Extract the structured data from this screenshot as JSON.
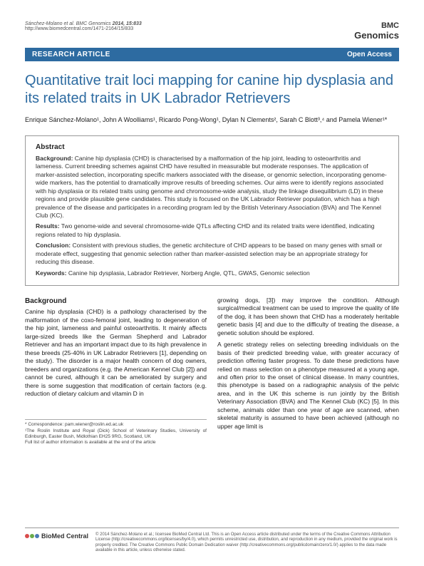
{
  "header": {
    "citation_authors": "Sánchez-Molano et al. BMC Genomics",
    "citation_year_vol": "2014, 15:833",
    "citation_url": "http://www.biomedcentral.com/1471-2164/15/833",
    "logo_prefix": "BMC",
    "logo_name": "Genomics"
  },
  "banner": {
    "left": "RESEARCH ARTICLE",
    "right": "Open Access"
  },
  "title": "Quantitative trait loci mapping for canine hip dysplasia and its related traits in UK Labrador Retrievers",
  "authors_html": "Enrique Sánchez-Molano¹, John A Woolliams¹, Ricardo Pong-Wong¹, Dylan N Clements², Sarah C Blott³,⁴ and Pamela Wiener¹*",
  "abstract": {
    "heading": "Abstract",
    "background_label": "Background:",
    "background": "Canine hip dysplasia (CHD) is characterised by a malformation of the hip joint, leading to osteoarthritis and lameness. Current breeding schemes against CHD have resulted in measurable but moderate responses. The application of marker-assisted selection, incorporating specific markers associated with the disease, or genomic selection, incorporating genome-wide markers, has the potential to dramatically improve results of breeding schemes. Our aims were to identify regions associated with hip dysplasia or its related traits using genome and chromosome-wide analysis, study the linkage disequilibrium (LD) in these regions and provide plausible gene candidates. This study is focused on the UK Labrador Retriever population, which has a high prevalence of the disease and participates in a recording program led by the British Veterinary Association (BVA) and The Kennel Club (KC).",
    "results_label": "Results:",
    "results": "Two genome-wide and several chromosome-wide QTLs affecting CHD and its related traits were identified, indicating regions related to hip dysplasia.",
    "conclusion_label": "Conclusion:",
    "conclusion": "Consistent with previous studies, the genetic architecture of CHD appears to be based on many genes with small or moderate effect, suggesting that genomic selection rather than marker-assisted selection may be an appropriate strategy for reducing this disease.",
    "keywords_label": "Keywords:",
    "keywords": "Canine hip dysplasia, Labrador Retriever, Norberg Angle, QTL, GWAS, Genomic selection"
  },
  "body": {
    "section_head": "Background",
    "col1_p1": "Canine hip dysplasia (CHD) is a pathology characterised by the malformation of the coxo-femoral joint, leading to degeneration of the hip joint, lameness and painful osteoarthritis. It mainly affects large-sized breeds like the German Shepherd and Labrador Retriever and has an important impact due to its high prevalence in these breeds (25-40% in UK Labrador Retrievers [1], depending on the study). The disorder is a major health concern of dog owners, breeders and organizations (e.g. the American Kennel Club [2]) and cannot be cured, although it can be ameliorated by surgery and there is some suggestion that modification of certain factors (e.g. reduction of dietary calcium and vitamin D in",
    "col2_p1": "growing dogs, [3]) may improve the condition. Although surgical/medical treatment can be used to improve the quality of life of the dog, it has been shown that CHD has a moderately heritable genetic basis [4] and due to the difficulty of treating the disease, a genetic solution should be explored.",
    "col2_p2": "A genetic strategy relies on selecting breeding individuals on the basis of their predicted breeding value, with greater accuracy of prediction offering faster progress. To date these predictions have relied on mass selection on a phenotype measured at a young age, and often prior to the onset of clinical disease. In many countries, this phenotype is based on a radiographic analysis of the pelvic area, and in the UK this scheme is run jointly by the British Veterinary Association (BVA) and The Kennel Club (KC) [5]. In this scheme, animals older than one year of age are scanned, when skeletal maturity is assumed to have been achieved (although no upper age limit is"
  },
  "correspondence": {
    "line1": "* Correspondence: pam.wiener@roslin.ed.ac.uk",
    "line2": "¹The Roslin Institute and Royal (Dick) School of Veterinary Studies, University of Edinburgh, Easter Bush, Midlothian EH25 9RG, Scotland, UK",
    "line3": "Full list of author information is available at the end of the article"
  },
  "footer": {
    "logo_text": "BioMed Central",
    "circle_colors": [
      "#d94c4c",
      "#6aaa4a",
      "#4a7ab5"
    ],
    "text": "© 2014 Sánchez-Molano et al.; licensee BioMed Central Ltd. This is an Open Access article distributed under the terms of the Creative Commons Attribution License (http://creativecommons.org/licenses/by/4.0), which permits unrestricted use, distribution, and reproduction in any medium, provided the original work is properly credited. The Creative Commons Public Domain Dedication waiver (http://creativecommons.org/publicdomain/zero/1.0/) applies to the data made available in this article, unless otherwise stated."
  }
}
